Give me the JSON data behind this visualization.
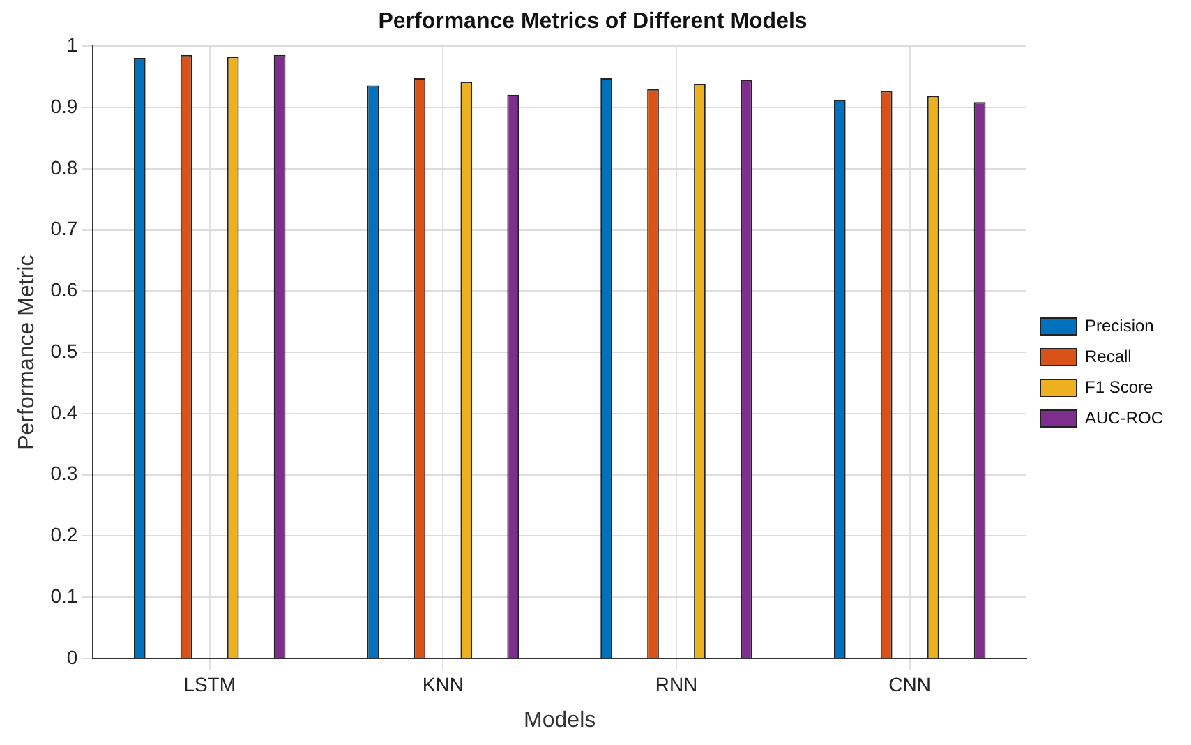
{
  "chart_data": {
    "type": "bar",
    "title": "Performance Metrics of Different Models",
    "xlabel": "Models",
    "ylabel": "Performance Metric",
    "categories": [
      "LSTM",
      "KNN",
      "RNN",
      "CNN"
    ],
    "series": [
      {
        "name": "Precision",
        "color": "#0072bd",
        "values": [
          0.981,
          0.936,
          0.948,
          0.912
        ]
      },
      {
        "name": "Recall",
        "color": "#d95319",
        "values": [
          0.986,
          0.948,
          0.93,
          0.927
        ]
      },
      {
        "name": "F1 Score",
        "color": "#edb120",
        "values": [
          0.983,
          0.942,
          0.939,
          0.919
        ]
      },
      {
        "name": "AUC-ROC",
        "color": "#7e2f8e",
        "values": [
          0.986,
          0.921,
          0.945,
          0.909
        ]
      }
    ],
    "ylim": [
      0,
      1
    ],
    "yticks": [
      0,
      0.1,
      0.2,
      0.3,
      0.4,
      0.5,
      0.6,
      0.7,
      0.8,
      0.9,
      1
    ],
    "grid": true,
    "legend": "right"
  }
}
